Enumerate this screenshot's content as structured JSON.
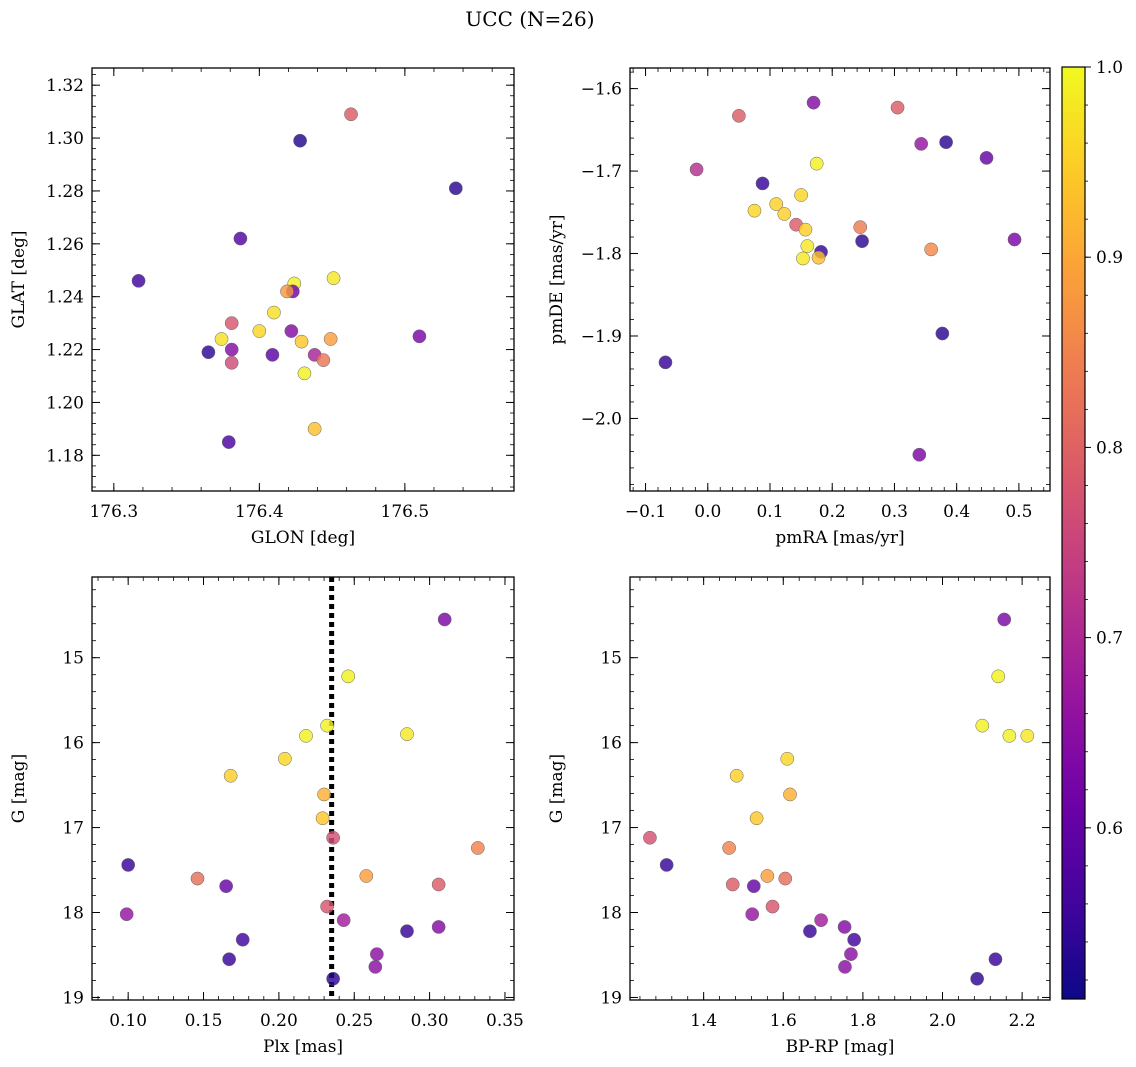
{
  "figure_title": "UCC (N=26)",
  "colorbar": {
    "colormap": "plasma",
    "range": [
      0.51,
      1.0
    ],
    "ticks": [
      "0.6",
      "0.7",
      "0.8",
      "0.9",
      "1.0"
    ],
    "tick_values": [
      0.6,
      0.7,
      0.8,
      0.9,
      1.0
    ]
  },
  "chart_data": [
    {
      "type": "scatter",
      "id": "glon-glat",
      "xlabel": "GLON [deg]",
      "ylabel": "GLAT [deg]",
      "xlim": [
        176.285,
        176.575
      ],
      "ylim": [
        1.1665,
        1.3265
      ],
      "yinvert": false,
      "xticks": [
        176.3,
        176.4,
        176.5
      ],
      "xticklabels": [
        "176.3",
        "176.4",
        "176.5"
      ],
      "yticks": [
        1.18,
        1.2,
        1.22,
        1.24,
        1.26,
        1.28,
        1.3,
        1.32
      ],
      "yticklabels": [
        "1.18",
        "1.20",
        "1.22",
        "1.24",
        "1.26",
        "1.28",
        "1.30",
        "1.32"
      ],
      "points": [
        {
          "x": 176.463,
          "y": 1.309,
          "c": 0.79
        },
        {
          "x": 176.428,
          "y": 1.299,
          "c": 0.53
        },
        {
          "x": 176.535,
          "y": 1.281,
          "c": 0.54
        },
        {
          "x": 176.387,
          "y": 1.262,
          "c": 0.58
        },
        {
          "x": 176.317,
          "y": 1.246,
          "c": 0.56
        },
        {
          "x": 176.451,
          "y": 1.247,
          "c": 0.98
        },
        {
          "x": 176.424,
          "y": 1.245,
          "c": 0.99
        },
        {
          "x": 176.423,
          "y": 1.242,
          "c": 0.62
        },
        {
          "x": 176.419,
          "y": 1.242,
          "c": 0.88
        },
        {
          "x": 176.41,
          "y": 1.234,
          "c": 0.97
        },
        {
          "x": 176.381,
          "y": 1.23,
          "c": 0.78
        },
        {
          "x": 176.422,
          "y": 1.227,
          "c": 0.64
        },
        {
          "x": 176.4,
          "y": 1.227,
          "c": 0.96
        },
        {
          "x": 176.449,
          "y": 1.224,
          "c": 0.89
        },
        {
          "x": 176.51,
          "y": 1.225,
          "c": 0.63
        },
        {
          "x": 176.374,
          "y": 1.224,
          "c": 0.97
        },
        {
          "x": 176.429,
          "y": 1.223,
          "c": 0.94
        },
        {
          "x": 176.381,
          "y": 1.22,
          "c": 0.64
        },
        {
          "x": 176.365,
          "y": 1.219,
          "c": 0.54
        },
        {
          "x": 176.409,
          "y": 1.218,
          "c": 0.59
        },
        {
          "x": 176.438,
          "y": 1.218,
          "c": 0.69
        },
        {
          "x": 176.444,
          "y": 1.216,
          "c": 0.83
        },
        {
          "x": 176.381,
          "y": 1.215,
          "c": 0.76
        },
        {
          "x": 176.431,
          "y": 1.211,
          "c": 0.99
        },
        {
          "x": 176.438,
          "y": 1.19,
          "c": 0.93
        },
        {
          "x": 176.379,
          "y": 1.185,
          "c": 0.57
        }
      ]
    },
    {
      "type": "scatter",
      "id": "pmra-pmde",
      "xlabel": "pmRA [mas/yr]",
      "ylabel": "pmDE [mas/yr]",
      "xlim": [
        -0.125,
        0.55
      ],
      "ylim": [
        -2.088,
        -1.575
      ],
      "yinvert": false,
      "xticks": [
        -0.1,
        0.0,
        0.1,
        0.2,
        0.3,
        0.4,
        0.5
      ],
      "xticklabels": [
        "−0.1",
        "0.0",
        "0.1",
        "0.2",
        "0.3",
        "0.4",
        "0.5"
      ],
      "yticks": [
        -2.0,
        -1.9,
        -1.8,
        -1.7,
        -1.6
      ],
      "yticklabels": [
        "−2.0",
        "−1.9",
        "−1.8",
        "−1.7",
        "−1.6"
      ],
      "points": [
        {
          "x": 0.17,
          "y": -1.617,
          "c": 0.64
        },
        {
          "x": 0.305,
          "y": -1.623,
          "c": 0.79
        },
        {
          "x": 0.05,
          "y": -1.633,
          "c": 0.79
        },
        {
          "x": 0.343,
          "y": -1.667,
          "c": 0.66
        },
        {
          "x": 0.383,
          "y": -1.665,
          "c": 0.54
        },
        {
          "x": 0.448,
          "y": -1.684,
          "c": 0.6
        },
        {
          "x": 0.175,
          "y": -1.691,
          "c": 0.99
        },
        {
          "x": -0.018,
          "y": -1.698,
          "c": 0.71
        },
        {
          "x": 0.088,
          "y": -1.715,
          "c": 0.55
        },
        {
          "x": 0.15,
          "y": -1.729,
          "c": 0.96
        },
        {
          "x": 0.11,
          "y": -1.74,
          "c": 0.95
        },
        {
          "x": 0.075,
          "y": -1.748,
          "c": 0.96
        },
        {
          "x": 0.123,
          "y": -1.752,
          "c": 0.95
        },
        {
          "x": 0.142,
          "y": -1.765,
          "c": 0.79
        },
        {
          "x": 0.245,
          "y": -1.768,
          "c": 0.84
        },
        {
          "x": 0.157,
          "y": -1.771,
          "c": 0.95
        },
        {
          "x": 0.248,
          "y": -1.785,
          "c": 0.54
        },
        {
          "x": 0.493,
          "y": -1.783,
          "c": 0.63
        },
        {
          "x": 0.16,
          "y": -1.791,
          "c": 0.98
        },
        {
          "x": 0.359,
          "y": -1.795,
          "c": 0.86
        },
        {
          "x": 0.182,
          "y": -1.798,
          "c": 0.55
        },
        {
          "x": 0.178,
          "y": -1.805,
          "c": 0.93
        },
        {
          "x": 0.153,
          "y": -1.806,
          "c": 0.98
        },
        {
          "x": 0.377,
          "y": -1.897,
          "c": 0.54
        },
        {
          "x": -0.068,
          "y": -1.932,
          "c": 0.55
        },
        {
          "x": 0.34,
          "y": -2.044,
          "c": 0.63
        }
      ]
    },
    {
      "type": "scatter",
      "id": "plx-g",
      "xlabel": "Plx [mas]",
      "ylabel": "G [mag]",
      "xlim": [
        0.076,
        0.356
      ],
      "ylim": [
        14.05,
        19.03
      ],
      "yinvert": true,
      "vline": {
        "x": 0.235,
        "style": "dotted"
      },
      "xticks": [
        0.1,
        0.15,
        0.2,
        0.25,
        0.3,
        0.35
      ],
      "xticklabels": [
        "0.10",
        "0.15",
        "0.20",
        "0.25",
        "0.30",
        "0.35"
      ],
      "yticks": [
        15,
        16,
        17,
        18,
        19
      ],
      "yticklabels": [
        "15",
        "16",
        "17",
        "18",
        "19"
      ],
      "points": [
        {
          "x": 0.31,
          "y": 14.55,
          "c": 0.63
        },
        {
          "x": 0.246,
          "y": 15.22,
          "c": 0.99
        },
        {
          "x": 0.232,
          "y": 15.8,
          "c": 0.99
        },
        {
          "x": 0.218,
          "y": 15.92,
          "c": 0.99
        },
        {
          "x": 0.285,
          "y": 15.9,
          "c": 0.98
        },
        {
          "x": 0.204,
          "y": 16.19,
          "c": 0.96
        },
        {
          "x": 0.168,
          "y": 16.39,
          "c": 0.95
        },
        {
          "x": 0.23,
          "y": 16.61,
          "c": 0.91
        },
        {
          "x": 0.229,
          "y": 16.89,
          "c": 0.94
        },
        {
          "x": 0.236,
          "y": 17.12,
          "c": 0.77
        },
        {
          "x": 0.332,
          "y": 17.24,
          "c": 0.85
        },
        {
          "x": 0.1,
          "y": 17.44,
          "c": 0.55
        },
        {
          "x": 0.146,
          "y": 17.6,
          "c": 0.82
        },
        {
          "x": 0.258,
          "y": 17.57,
          "c": 0.89
        },
        {
          "x": 0.165,
          "y": 17.69,
          "c": 0.6
        },
        {
          "x": 0.306,
          "y": 17.67,
          "c": 0.79
        },
        {
          "x": 0.232,
          "y": 17.93,
          "c": 0.78
        },
        {
          "x": 0.099,
          "y": 18.02,
          "c": 0.66
        },
        {
          "x": 0.243,
          "y": 18.09,
          "c": 0.68
        },
        {
          "x": 0.306,
          "y": 18.17,
          "c": 0.64
        },
        {
          "x": 0.285,
          "y": 18.22,
          "c": 0.55
        },
        {
          "x": 0.176,
          "y": 18.32,
          "c": 0.56
        },
        {
          "x": 0.265,
          "y": 18.49,
          "c": 0.65
        },
        {
          "x": 0.167,
          "y": 18.55,
          "c": 0.55
        },
        {
          "x": 0.264,
          "y": 18.64,
          "c": 0.65
        },
        {
          "x": 0.236,
          "y": 18.78,
          "c": 0.54
        }
      ]
    },
    {
      "type": "scatter",
      "id": "bprp-g",
      "xlabel": "BP-RP [mag]",
      "ylabel": "G [mag]",
      "xlim": [
        1.215,
        2.27
      ],
      "ylim": [
        14.05,
        19.03
      ],
      "yinvert": true,
      "xticks": [
        1.4,
        1.6,
        1.8,
        2.0,
        2.2
      ],
      "xticklabels": [
        "1.4",
        "1.6",
        "1.8",
        "2.0",
        "2.2"
      ],
      "yticks": [
        15,
        16,
        17,
        18,
        19
      ],
      "yticklabels": [
        "15",
        "16",
        "17",
        "18",
        "19"
      ],
      "points": [
        {
          "x": 2.155,
          "y": 14.55,
          "c": 0.63
        },
        {
          "x": 2.14,
          "y": 15.22,
          "c": 0.99
        },
        {
          "x": 2.1,
          "y": 15.8,
          "c": 0.99
        },
        {
          "x": 2.168,
          "y": 15.92,
          "c": 0.99
        },
        {
          "x": 2.213,
          "y": 15.92,
          "c": 0.98
        },
        {
          "x": 1.61,
          "y": 16.19,
          "c": 0.96
        },
        {
          "x": 1.483,
          "y": 16.39,
          "c": 0.95
        },
        {
          "x": 1.617,
          "y": 16.61,
          "c": 0.91
        },
        {
          "x": 1.533,
          "y": 16.89,
          "c": 0.94
        },
        {
          "x": 1.265,
          "y": 17.12,
          "c": 0.77
        },
        {
          "x": 1.464,
          "y": 17.24,
          "c": 0.85
        },
        {
          "x": 1.307,
          "y": 17.44,
          "c": 0.55
        },
        {
          "x": 1.473,
          "y": 17.67,
          "c": 0.79
        },
        {
          "x": 1.526,
          "y": 17.69,
          "c": 0.6
        },
        {
          "x": 1.56,
          "y": 17.57,
          "c": 0.89
        },
        {
          "x": 1.605,
          "y": 17.6,
          "c": 0.82
        },
        {
          "x": 1.573,
          "y": 17.93,
          "c": 0.78
        },
        {
          "x": 1.522,
          "y": 18.02,
          "c": 0.66
        },
        {
          "x": 1.695,
          "y": 18.09,
          "c": 0.68
        },
        {
          "x": 1.754,
          "y": 18.17,
          "c": 0.64
        },
        {
          "x": 1.667,
          "y": 18.22,
          "c": 0.55
        },
        {
          "x": 1.778,
          "y": 18.32,
          "c": 0.56
        },
        {
          "x": 1.77,
          "y": 18.49,
          "c": 0.65
        },
        {
          "x": 2.133,
          "y": 18.55,
          "c": 0.55
        },
        {
          "x": 1.755,
          "y": 18.64,
          "c": 0.65
        },
        {
          "x": 2.087,
          "y": 18.78,
          "c": 0.54
        }
      ]
    }
  ]
}
